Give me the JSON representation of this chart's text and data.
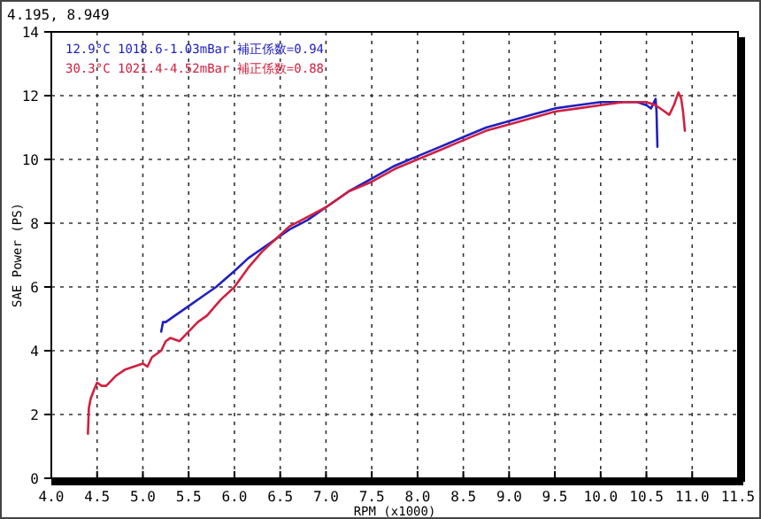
{
  "chart_data": {
    "type": "line",
    "xlabel": "RPM (x1000)",
    "ylabel": "SAE Power (PS)",
    "annotations": [
      "4.195, 8.949"
    ],
    "xlim": [
      4.0,
      11.5
    ],
    "ylim": [
      0,
      14
    ],
    "xticks": [
      {
        "value": 4,
        "label": "4.0"
      },
      4.5,
      {
        "value": 5,
        "label": "5.0"
      },
      5.5,
      {
        "value": 6,
        "label": "6.0"
      },
      6.5,
      {
        "value": 7,
        "label": "7.0"
      },
      7.5,
      {
        "value": 8,
        "label": "8.0"
      },
      8.5,
      {
        "value": 9,
        "label": "9.0"
      },
      9.5,
      {
        "value": 10,
        "label": "10.0"
      },
      10.5,
      {
        "value": 11,
        "label": "11.0"
      },
      11.5
    ],
    "yticks": [
      0,
      2,
      4,
      6,
      8,
      10,
      12,
      14
    ],
    "grid": true,
    "legend": "top left",
    "marker": "none",
    "line_style": "solid",
    "series": [
      {
        "name": "12.9°C 1018.6-1.03mBar 補正係数=0.94",
        "color": "#2020c0",
        "x": [
          5.2,
          5.22,
          5.25,
          5.35,
          5.5,
          5.65,
          5.8,
          6.0,
          6.15,
          6.3,
          6.45,
          6.6,
          6.8,
          7.0,
          7.25,
          7.5,
          7.75,
          8.0,
          8.25,
          8.5,
          8.75,
          9.0,
          9.25,
          9.5,
          9.75,
          10.0,
          10.2,
          10.4,
          10.5,
          10.55,
          10.6,
          10.61,
          10.62
        ],
        "values": [
          4.6,
          4.9,
          4.9,
          5.1,
          5.4,
          5.7,
          6.0,
          6.5,
          6.9,
          7.2,
          7.5,
          7.8,
          8.1,
          8.5,
          9.0,
          9.4,
          9.8,
          10.1,
          10.4,
          10.7,
          11.0,
          11.2,
          11.4,
          11.6,
          11.7,
          11.8,
          11.8,
          11.8,
          11.7,
          11.6,
          11.9,
          11.5,
          10.4
        ]
      },
      {
        "name": "30.3°C 1021.4-4.52mBar 補正係数=0.88",
        "color": "#d02040",
        "x": [
          4.4,
          4.41,
          4.43,
          4.47,
          4.5,
          4.55,
          4.6,
          4.7,
          4.8,
          4.9,
          5.0,
          5.05,
          5.1,
          5.2,
          5.25,
          5.3,
          5.4,
          5.5,
          5.6,
          5.7,
          5.85,
          6.0,
          6.15,
          6.3,
          6.45,
          6.6,
          6.8,
          7.0,
          7.25,
          7.5,
          7.75,
          8.0,
          8.25,
          8.5,
          8.75,
          9.0,
          9.25,
          9.5,
          9.75,
          10.0,
          10.25,
          10.5,
          10.6,
          10.7,
          10.75,
          10.8,
          10.85,
          10.88,
          10.9,
          10.92
        ],
        "values": [
          1.4,
          2.2,
          2.5,
          2.8,
          3.0,
          2.9,
          2.9,
          3.2,
          3.4,
          3.5,
          3.6,
          3.5,
          3.8,
          4.0,
          4.3,
          4.4,
          4.3,
          4.6,
          4.9,
          5.1,
          5.6,
          6.0,
          6.6,
          7.1,
          7.5,
          7.9,
          8.2,
          8.5,
          9.0,
          9.3,
          9.7,
          10.0,
          10.3,
          10.6,
          10.9,
          11.1,
          11.3,
          11.5,
          11.6,
          11.7,
          11.8,
          11.8,
          11.7,
          11.5,
          11.4,
          11.7,
          12.1,
          11.9,
          11.5,
          10.9
        ]
      }
    ]
  }
}
